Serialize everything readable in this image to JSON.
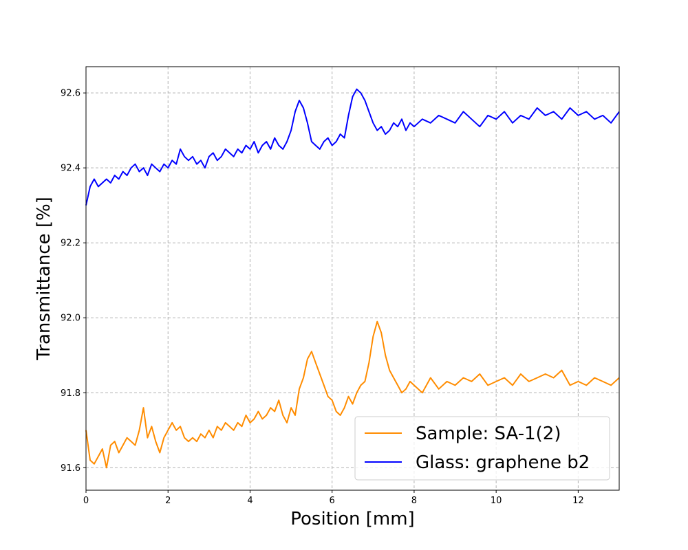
{
  "chart_data": {
    "type": "line",
    "title": "",
    "xlabel": "Position [mm]",
    "ylabel": "Transmittance [%]",
    "xlim": [
      0,
      13
    ],
    "ylim": [
      91.54,
      92.67
    ],
    "xticks": [
      0,
      2,
      4,
      6,
      8,
      10,
      12
    ],
    "yticks": [
      91.6,
      91.8,
      92.0,
      92.2,
      92.4,
      92.6
    ],
    "grid": true,
    "legend_position": "lower-right",
    "series": [
      {
        "name": "Sample: SA-1(2)",
        "color": "#ff8c00",
        "x": [
          0.0,
          0.1,
          0.2,
          0.3,
          0.4,
          0.5,
          0.6,
          0.7,
          0.8,
          0.9,
          1.0,
          1.1,
          1.2,
          1.3,
          1.4,
          1.5,
          1.6,
          1.7,
          1.8,
          1.9,
          2.0,
          2.1,
          2.2,
          2.3,
          2.4,
          2.5,
          2.6,
          2.7,
          2.8,
          2.9,
          3.0,
          3.1,
          3.2,
          3.3,
          3.4,
          3.5,
          3.6,
          3.7,
          3.8,
          3.9,
          4.0,
          4.1,
          4.2,
          4.3,
          4.4,
          4.5,
          4.6,
          4.7,
          4.8,
          4.9,
          5.0,
          5.1,
          5.2,
          5.3,
          5.4,
          5.5,
          5.6,
          5.7,
          5.8,
          5.9,
          6.0,
          6.1,
          6.2,
          6.3,
          6.4,
          6.5,
          6.6,
          6.7,
          6.8,
          6.9,
          7.0,
          7.1,
          7.2,
          7.3,
          7.4,
          7.5,
          7.6,
          7.7,
          7.8,
          7.9,
          8.0,
          8.2,
          8.4,
          8.6,
          8.8,
          9.0,
          9.2,
          9.4,
          9.6,
          9.8,
          10.0,
          10.2,
          10.4,
          10.6,
          10.8,
          11.0,
          11.2,
          11.4,
          11.6,
          11.8,
          12.0,
          12.2,
          12.4,
          12.6,
          12.8,
          13.0
        ],
        "y": [
          91.7,
          91.62,
          91.61,
          91.63,
          91.65,
          91.6,
          91.66,
          91.67,
          91.64,
          91.66,
          91.68,
          91.67,
          91.66,
          91.7,
          91.76,
          91.68,
          91.71,
          91.67,
          91.64,
          91.68,
          91.7,
          91.72,
          91.7,
          91.71,
          91.68,
          91.67,
          91.68,
          91.67,
          91.69,
          91.68,
          91.7,
          91.68,
          91.71,
          91.7,
          91.72,
          91.71,
          91.7,
          91.72,
          91.71,
          91.74,
          91.72,
          91.73,
          91.75,
          91.73,
          91.74,
          91.76,
          91.75,
          91.78,
          91.74,
          91.72,
          91.76,
          91.74,
          91.81,
          91.84,
          91.89,
          91.91,
          91.88,
          91.85,
          91.82,
          91.79,
          91.78,
          91.75,
          91.74,
          91.76,
          91.79,
          91.77,
          91.8,
          91.82,
          91.83,
          91.88,
          91.95,
          91.99,
          91.96,
          91.9,
          91.86,
          91.84,
          91.82,
          91.8,
          91.81,
          91.83,
          91.82,
          91.8,
          91.84,
          91.81,
          91.83,
          91.82,
          91.84,
          91.83,
          91.85,
          91.82,
          91.83,
          91.84,
          91.82,
          91.85,
          91.83,
          91.84,
          91.85,
          91.84,
          91.86,
          91.82,
          91.83,
          91.82,
          91.84,
          91.83,
          91.82,
          91.84
        ]
      },
      {
        "name": "Glass: graphene b2",
        "color": "#0000ff",
        "x": [
          0.0,
          0.1,
          0.2,
          0.3,
          0.4,
          0.5,
          0.6,
          0.7,
          0.8,
          0.9,
          1.0,
          1.1,
          1.2,
          1.3,
          1.4,
          1.5,
          1.6,
          1.7,
          1.8,
          1.9,
          2.0,
          2.1,
          2.2,
          2.3,
          2.4,
          2.5,
          2.6,
          2.7,
          2.8,
          2.9,
          3.0,
          3.1,
          3.2,
          3.3,
          3.4,
          3.5,
          3.6,
          3.7,
          3.8,
          3.9,
          4.0,
          4.1,
          4.2,
          4.3,
          4.4,
          4.5,
          4.6,
          4.7,
          4.8,
          4.9,
          5.0,
          5.1,
          5.2,
          5.3,
          5.4,
          5.5,
          5.6,
          5.7,
          5.8,
          5.9,
          6.0,
          6.1,
          6.2,
          6.3,
          6.4,
          6.5,
          6.6,
          6.7,
          6.8,
          6.9,
          7.0,
          7.1,
          7.2,
          7.3,
          7.4,
          7.5,
          7.6,
          7.7,
          7.8,
          7.9,
          8.0,
          8.2,
          8.4,
          8.6,
          8.8,
          9.0,
          9.2,
          9.4,
          9.6,
          9.8,
          10.0,
          10.2,
          10.4,
          10.6,
          10.8,
          11.0,
          11.2,
          11.4,
          11.6,
          11.8,
          12.0,
          12.2,
          12.4,
          12.6,
          12.8,
          13.0
        ],
        "y": [
          92.3,
          92.35,
          92.37,
          92.35,
          92.36,
          92.37,
          92.36,
          92.38,
          92.37,
          92.39,
          92.38,
          92.4,
          92.41,
          92.39,
          92.4,
          92.38,
          92.41,
          92.4,
          92.39,
          92.41,
          92.4,
          92.42,
          92.41,
          92.45,
          92.43,
          92.42,
          92.43,
          92.41,
          92.42,
          92.4,
          92.43,
          92.44,
          92.42,
          92.43,
          92.45,
          92.44,
          92.43,
          92.45,
          92.44,
          92.46,
          92.45,
          92.47,
          92.44,
          92.46,
          92.47,
          92.45,
          92.48,
          92.46,
          92.45,
          92.47,
          92.5,
          92.55,
          92.58,
          92.56,
          92.52,
          92.47,
          92.46,
          92.45,
          92.47,
          92.48,
          92.46,
          92.47,
          92.49,
          92.48,
          92.54,
          92.59,
          92.61,
          92.6,
          92.58,
          92.55,
          92.52,
          92.5,
          92.51,
          92.49,
          92.5,
          92.52,
          92.51,
          92.53,
          92.5,
          92.52,
          92.51,
          92.53,
          92.52,
          92.54,
          92.53,
          92.52,
          92.55,
          92.53,
          92.51,
          92.54,
          92.53,
          92.55,
          92.52,
          92.54,
          92.53,
          92.56,
          92.54,
          92.55,
          92.53,
          92.56,
          92.54,
          92.55,
          92.53,
          92.54,
          92.52,
          92.55
        ]
      }
    ]
  }
}
